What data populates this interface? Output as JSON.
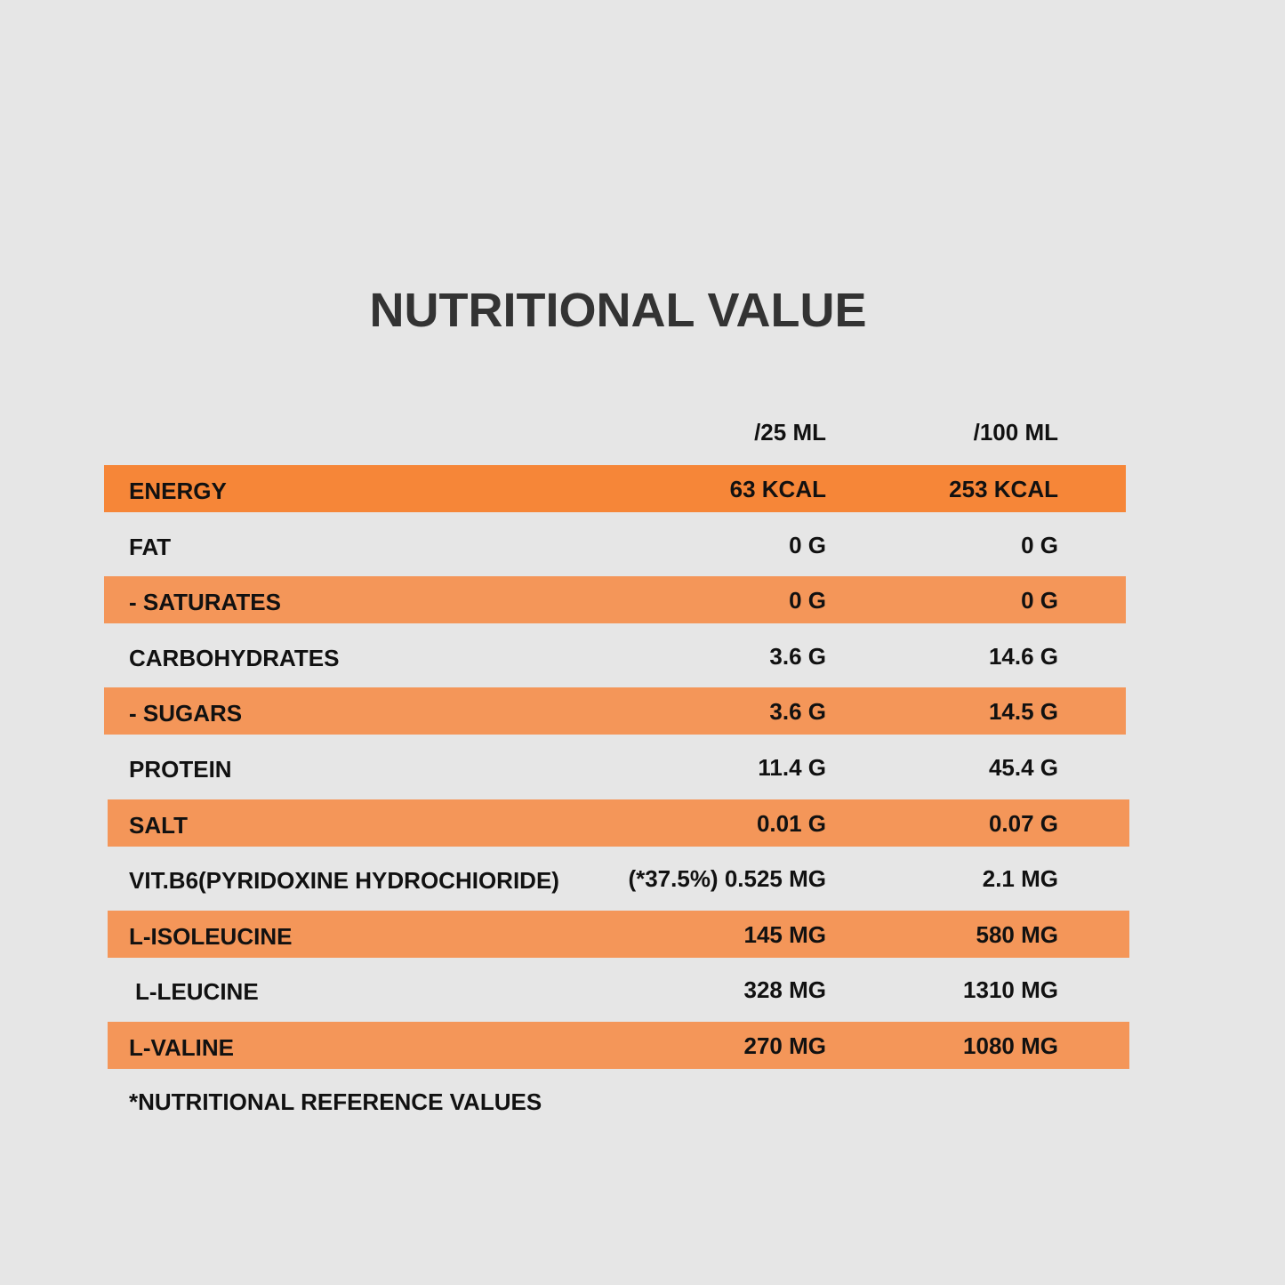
{
  "title": "NUTRITIONAL VALUE",
  "table": {
    "header": [
      "/25 ML",
      "/100 ML"
    ],
    "rows": [
      [
        "ENERGY",
        "63 KCAL",
        "253 KCAL"
      ],
      [
        "FAT",
        "0 G",
        "0 G"
      ],
      [
        "- SATURATES",
        "0 G",
        "0 G"
      ],
      [
        "CARBOHYDRATES",
        "3.6 G",
        "14.6 G"
      ],
      [
        "- SUGARS",
        "3.6 G",
        "14.5 G"
      ],
      [
        "PROTEIN",
        "11.4 G",
        "45.4 G"
      ],
      [
        "SALT",
        "0.01 G",
        "0.07 G"
      ],
      [
        "VIT.B6(PYRIDOXINE HYDROCHIORIDE)",
        "(*37.5%) 0.525 MG",
        "2.1 MG"
      ],
      [
        "L-ISOLEUCINE",
        "145 MG",
        "580 MG"
      ],
      [
        "L-LEUCINE",
        "328 MG",
        "1310 MG"
      ],
      [
        "L-VALINE",
        "270 MG",
        "1080 MG"
      ]
    ]
  },
  "footnote": "*NUTRITIONAL REFERENCE VALUES"
}
